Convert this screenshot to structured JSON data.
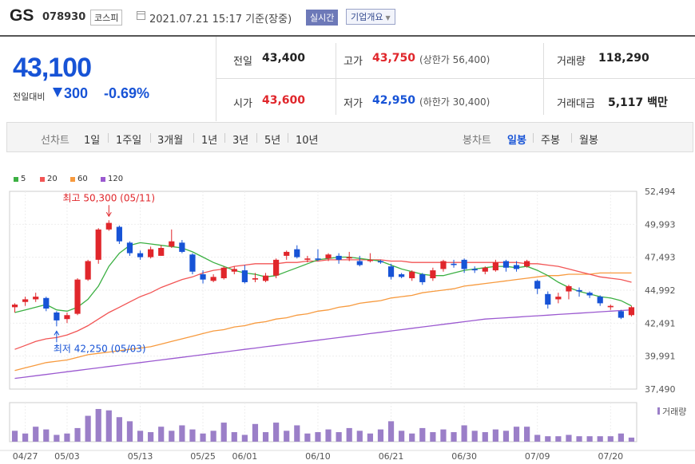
{
  "header": {
    "name": "GS",
    "code": "078930",
    "market": "코스피",
    "date": "2021.07.21 15:17 기준(장중)",
    "realtime_label": "실시간",
    "overview_label": "기업개요"
  },
  "summary": {
    "price": "43,100",
    "change_label": "전일대비",
    "change_value": "300",
    "change_pct": "-0.69%",
    "prev_close_label": "전일",
    "prev_close": "43,400",
    "open_label": "시가",
    "open": "43,600",
    "high_label": "고가",
    "high": "43,750",
    "upper_limit": "(상한가 56,400)",
    "low_label": "저가",
    "low": "42,950",
    "lower_limit": "(하한가 30,400)",
    "volume_label": "거래량",
    "volume": "118,290",
    "amount_label": "거래대금",
    "amount": "5,117 백만"
  },
  "tabs": {
    "line_label": "선차트",
    "line_items": [
      "1일",
      "1주일",
      "3개월",
      "1년",
      "3년",
      "5년",
      "10년"
    ],
    "candle_label": "봉차트",
    "candle_items": [
      "일봉",
      "주봉",
      "월봉"
    ],
    "candle_selected": 0
  },
  "colors": {
    "up": "#e0262b",
    "down": "#1753d6",
    "ma5": "#3cb043",
    "ma20": "#f25555",
    "ma60": "#f79a3e",
    "ma120": "#9b59d0",
    "volume": "#9b7fc8"
  },
  "chart_data": {
    "type": "candlestick",
    "legend": [
      {
        "name": "5",
        "color": "#3cb043"
      },
      {
        "name": "20",
        "color": "#f25555"
      },
      {
        "name": "60",
        "color": "#f79a3e"
      },
      {
        "name": "120",
        "color": "#9b59d0"
      }
    ],
    "y_ticks": [
      "52,494",
      "49,993",
      "47,493",
      "44,992",
      "42,491",
      "39,991",
      "37,490"
    ],
    "ylim": [
      37490,
      52494
    ],
    "x_ticks": [
      "04/27",
      "05/03",
      "05/13",
      "05/25",
      "06/01",
      "06/10",
      "06/21",
      "06/30",
      "07/09",
      "07/20"
    ],
    "x_tick_index": [
      1,
      5,
      12,
      18,
      22,
      29,
      36,
      43,
      50,
      57
    ],
    "volume_label": "거래량",
    "annotations": {
      "high": "최고 50,300 (05/11)",
      "high_index": 9,
      "high_value": 50300,
      "low": "최저 42,250 (05/03)",
      "low_index": 4,
      "low_value": 42250
    },
    "candles": [
      [
        43700,
        43900,
        43300,
        44000
      ],
      [
        44100,
        44300,
        43800,
        44500
      ],
      [
        44300,
        44500,
        44100,
        44800
      ],
      [
        44400,
        43600,
        43400,
        44500
      ],
      [
        43300,
        42700,
        42250,
        43400
      ],
      [
        42800,
        43100,
        42500,
        43300
      ],
      [
        43200,
        45800,
        43100,
        45900
      ],
      [
        45800,
        47200,
        45700,
        47300
      ],
      [
        47300,
        49600,
        47000,
        49700
      ],
      [
        49600,
        50100,
        49500,
        50300
      ],
      [
        49800,
        48700,
        48500,
        49900
      ],
      [
        48600,
        47800,
        47600,
        48700
      ],
      [
        47800,
        47500,
        47300,
        48000
      ],
      [
        47500,
        48100,
        47400,
        48300
      ],
      [
        47600,
        48200,
        47600,
        48400
      ],
      [
        48300,
        48700,
        48200,
        49600
      ],
      [
        48600,
        47900,
        47800,
        48800
      ],
      [
        47700,
        46400,
        46200,
        47800
      ],
      [
        46200,
        45800,
        45500,
        46500
      ],
      [
        45700,
        46000,
        45600,
        46200
      ],
      [
        45900,
        46700,
        45800,
        46800
      ],
      [
        46400,
        46600,
        46200,
        46800
      ],
      [
        46500,
        45600,
        45500,
        46900
      ],
      [
        45800,
        45900,
        45600,
        46300
      ],
      [
        45700,
        46100,
        45600,
        46300
      ],
      [
        46100,
        47300,
        45900,
        47400
      ],
      [
        47600,
        47900,
        47300,
        48000
      ],
      [
        48100,
        47500,
        47400,
        48400
      ],
      [
        47300,
        47400,
        47100,
        47600
      ],
      [
        47400,
        47300,
        47200,
        48100
      ],
      [
        47400,
        47700,
        47200,
        47800
      ],
      [
        47600,
        47300,
        47000,
        47800
      ],
      [
        47400,
        47500,
        47200,
        47900
      ],
      [
        47200,
        46900,
        46800,
        47600
      ],
      [
        47200,
        47300,
        47100,
        47800
      ],
      [
        47200,
        47100,
        47000,
        47300
      ],
      [
        46800,
        46000,
        45800,
        47000
      ],
      [
        46200,
        46000,
        45900,
        46300
      ],
      [
        45900,
        46400,
        45700,
        46500
      ],
      [
        46200,
        45600,
        45400,
        46300
      ],
      [
        45900,
        46500,
        45700,
        46700
      ],
      [
        46600,
        47200,
        46400,
        47300
      ],
      [
        47000,
        46900,
        46700,
        47300
      ],
      [
        47300,
        46600,
        46300,
        47400
      ],
      [
        46600,
        46500,
        46300,
        46800
      ],
      [
        46400,
        46700,
        46200,
        46800
      ],
      [
        46500,
        47100,
        46400,
        47300
      ],
      [
        47200,
        46700,
        46400,
        47300
      ],
      [
        46900,
        46600,
        46400,
        47200
      ],
      [
        46800,
        47200,
        46700,
        47300
      ],
      [
        45700,
        45100,
        44700,
        45800
      ],
      [
        44700,
        43900,
        43600,
        44900
      ],
      [
        44300,
        44500,
        44000,
        44800
      ],
      [
        44900,
        45300,
        44300,
        45400
      ],
      [
        45000,
        44900,
        44500,
        45200
      ],
      [
        44800,
        44600,
        44400,
        44900
      ],
      [
        44500,
        44000,
        43800,
        44600
      ],
      [
        43700,
        43800,
        43500,
        43900
      ],
      [
        43400,
        42900,
        42800,
        43500
      ],
      [
        43100,
        43700,
        43000,
        43800
      ]
    ],
    "ma5": [
      43300,
      43500,
      43700,
      43900,
      43500,
      43400,
      43700,
      44300,
      45300,
      46800,
      47800,
      48400,
      48600,
      48500,
      48400,
      48300,
      48200,
      47900,
      47500,
      47100,
      46800,
      46500,
      46300,
      46200,
      46000,
      46100,
      46400,
      46700,
      47000,
      47300,
      47400,
      47500,
      47500,
      47400,
      47300,
      47200,
      46900,
      46600,
      46400,
      46200,
      46100,
      46100,
      46300,
      46500,
      46600,
      46700,
      46800,
      46800,
      46700,
      46800,
      46500,
      46100,
      45600,
      45200,
      44900,
      44700,
      44500,
      44400,
      44200,
      43800
    ],
    "ma20": [
      40500,
      40800,
      41100,
      41300,
      41400,
      41600,
      41900,
      42300,
      42800,
      43300,
      43700,
      44100,
      44500,
      44800,
      45200,
      45500,
      45800,
      46000,
      46300,
      46500,
      46600,
      46800,
      46900,
      47000,
      47000,
      47000,
      47100,
      47100,
      47200,
      47200,
      47300,
      47300,
      47300,
      47300,
      47300,
      47300,
      47200,
      47200,
      47100,
      47100,
      47100,
      47100,
      47100,
      47100,
      47100,
      47100,
      47100,
      47100,
      47100,
      47000,
      47000,
      46900,
      46800,
      46600,
      46400,
      46200,
      46000,
      45900,
      45800,
      45600
    ],
    "ma60": [
      38900,
      39100,
      39300,
      39500,
      39600,
      39700,
      39900,
      40100,
      40200,
      40300,
      40400,
      40500,
      40600,
      40700,
      40900,
      41100,
      41300,
      41500,
      41700,
      41900,
      42000,
      42200,
      42300,
      42500,
      42600,
      42800,
      42900,
      43100,
      43200,
      43400,
      43500,
      43700,
      43800,
      44000,
      44100,
      44200,
      44400,
      44500,
      44600,
      44800,
      44900,
      45000,
      45100,
      45300,
      45400,
      45500,
      45600,
      45700,
      45800,
      45900,
      46000,
      46100,
      46100,
      46200,
      46200,
      46200,
      46300,
      46300,
      46300,
      46300
    ],
    "ma120": [
      38300,
      38400,
      38500,
      38600,
      38700,
      38800,
      38900,
      39000,
      39100,
      39200,
      39300,
      39400,
      39500,
      39600,
      39700,
      39800,
      39900,
      40000,
      40100,
      40200,
      40300,
      40400,
      40500,
      40600,
      40700,
      40800,
      40900,
      41000,
      41100,
      41200,
      41300,
      41400,
      41500,
      41600,
      41700,
      41800,
      41900,
      42000,
      42100,
      42200,
      42300,
      42400,
      42500,
      42600,
      42700,
      42800,
      42850,
      42900,
      42950,
      43000,
      43050,
      43100,
      43150,
      43200,
      43250,
      43300,
      43350,
      43400,
      43450,
      43500
    ],
    "volume": [
      40,
      30,
      55,
      45,
      25,
      30,
      50,
      95,
      120,
      115,
      90,
      75,
      40,
      35,
      55,
      40,
      60,
      45,
      30,
      40,
      70,
      35,
      25,
      65,
      35,
      70,
      40,
      60,
      30,
      35,
      45,
      35,
      50,
      40,
      30,
      45,
      75,
      40,
      30,
      50,
      35,
      45,
      35,
      60,
      40,
      35,
      45,
      40,
      55,
      55,
      25,
      20,
      20,
      25,
      20,
      20,
      20,
      20,
      30,
      15
    ]
  }
}
